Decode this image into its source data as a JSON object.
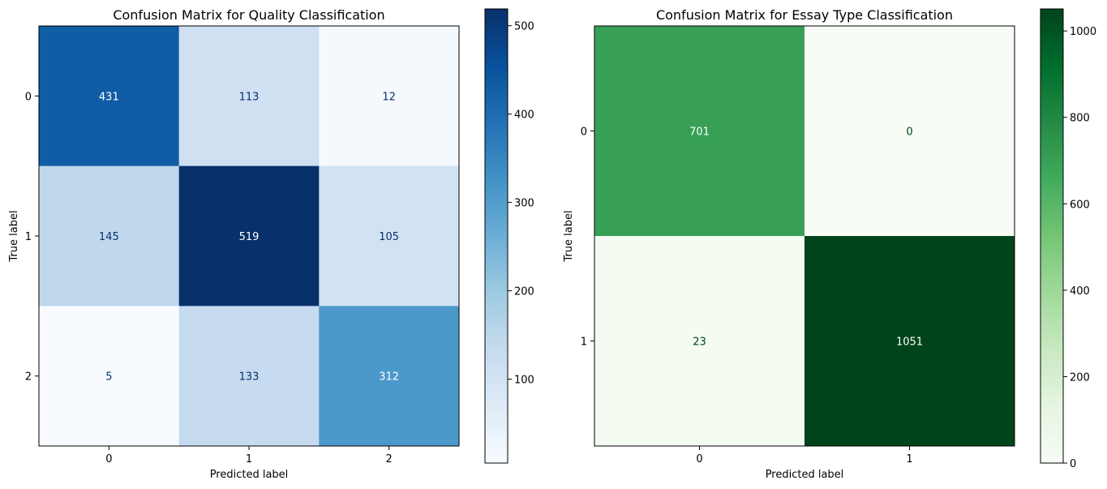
{
  "chart_data": [
    {
      "type": "heatmap",
      "title": "Confusion Matrix for Quality Classification",
      "xlabel": "Predicted label",
      "ylabel": "True label",
      "x_categories": [
        "0",
        "1",
        "2"
      ],
      "y_categories": [
        "0",
        "1",
        "2"
      ],
      "matrix": [
        [
          431,
          113,
          12
        ],
        [
          145,
          519,
          105
        ],
        [
          5,
          133,
          312
        ]
      ],
      "colormap": "Blues",
      "colors": {
        "low": "#f7fbff",
        "high": "#08306b"
      },
      "colorbar": {
        "range": [
          5,
          519
        ],
        "ticks": [
          100,
          200,
          300,
          400,
          500
        ],
        "tick_labels": [
          "100",
          "200",
          "300",
          "400",
          "500"
        ]
      },
      "grid": false
    },
    {
      "type": "heatmap",
      "title": "Confusion Matrix for Essay Type Classification",
      "xlabel": "Predicted label",
      "ylabel": "True label",
      "x_categories": [
        "0",
        "1"
      ],
      "y_categories": [
        "0",
        "1"
      ],
      "matrix": [
        [
          701,
          0
        ],
        [
          23,
          1051
        ]
      ],
      "colormap": "Greens",
      "colors": {
        "low": "#f7fcf5",
        "high": "#00441b"
      },
      "colorbar": {
        "range": [
          0,
          1051
        ],
        "ticks": [
          0,
          200,
          400,
          600,
          800,
          1000
        ],
        "tick_labels": [
          "0",
          "200",
          "400",
          "600",
          "800",
          "1000"
        ]
      },
      "grid": false
    }
  ]
}
